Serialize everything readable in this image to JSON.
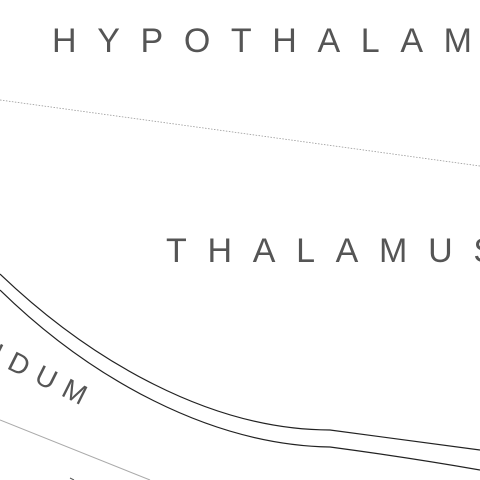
{
  "labels": {
    "hypothalamus": "HYPOTHALAM",
    "thalamus": "THALAMUS",
    "pallidum": "IDUM"
  },
  "colors": {
    "background": "#ffffff",
    "text": "#555555",
    "outline": "#222222",
    "dotted_line": "#999999",
    "faint_curve": "#aaaaaa"
  }
}
